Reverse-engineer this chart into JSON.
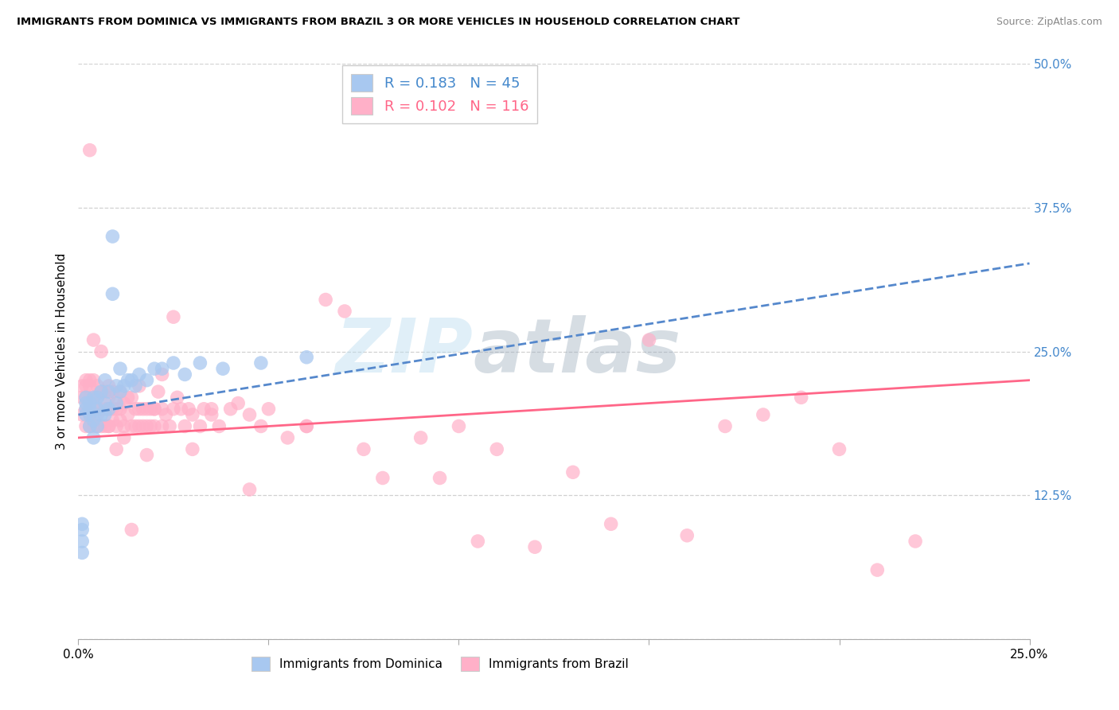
{
  "title": "IMMIGRANTS FROM DOMINICA VS IMMIGRANTS FROM BRAZIL 3 OR MORE VEHICLES IN HOUSEHOLD CORRELATION CHART",
  "source": "Source: ZipAtlas.com",
  "ylabel": "3 or more Vehicles in Household",
  "x_min": 0.0,
  "x_max": 0.25,
  "y_min": 0.0,
  "y_max": 0.5,
  "dominica_R": 0.183,
  "dominica_N": 45,
  "brazil_R": 0.102,
  "brazil_N": 116,
  "dominica_color": "#A8C8F0",
  "brazil_color": "#FFB0C8",
  "dominica_line_color": "#5588CC",
  "brazil_line_color": "#FF6688",
  "label_color": "#4488CC",
  "watermark_zip": "ZIP",
  "watermark_atlas": "atlas",
  "dom_line_x0": 0.0,
  "dom_line_y0": 0.195,
  "dom_line_x1": 0.095,
  "dom_line_y1": 0.245,
  "bra_line_x0": 0.0,
  "bra_line_y0": 0.175,
  "bra_line_x1": 0.25,
  "bra_line_y1": 0.225,
  "dominica_x": [
    0.001,
    0.001,
    0.001,
    0.002,
    0.002,
    0.002,
    0.002,
    0.003,
    0.003,
    0.003,
    0.003,
    0.004,
    0.004,
    0.005,
    0.005,
    0.005,
    0.006,
    0.006,
    0.007,
    0.007,
    0.007,
    0.008,
    0.008,
    0.009,
    0.009,
    0.01,
    0.01,
    0.011,
    0.011,
    0.012,
    0.013,
    0.014,
    0.015,
    0.016,
    0.018,
    0.02,
    0.022,
    0.025,
    0.028,
    0.032,
    0.038,
    0.048,
    0.06,
    0.001,
    0.004
  ],
  "dominica_y": [
    0.075,
    0.085,
    0.095,
    0.195,
    0.2,
    0.205,
    0.21,
    0.185,
    0.195,
    0.2,
    0.205,
    0.19,
    0.21,
    0.185,
    0.2,
    0.21,
    0.195,
    0.215,
    0.195,
    0.205,
    0.225,
    0.2,
    0.215,
    0.3,
    0.35,
    0.205,
    0.22,
    0.215,
    0.235,
    0.22,
    0.225,
    0.225,
    0.22,
    0.23,
    0.225,
    0.235,
    0.235,
    0.24,
    0.23,
    0.24,
    0.235,
    0.24,
    0.245,
    0.1,
    0.175
  ],
  "brazil_x": [
    0.001,
    0.001,
    0.001,
    0.002,
    0.002,
    0.002,
    0.002,
    0.002,
    0.003,
    0.003,
    0.003,
    0.003,
    0.003,
    0.004,
    0.004,
    0.004,
    0.004,
    0.005,
    0.005,
    0.005,
    0.005,
    0.006,
    0.006,
    0.006,
    0.007,
    0.007,
    0.007,
    0.008,
    0.008,
    0.008,
    0.008,
    0.009,
    0.009,
    0.009,
    0.01,
    0.01,
    0.01,
    0.011,
    0.011,
    0.011,
    0.012,
    0.012,
    0.013,
    0.013,
    0.014,
    0.014,
    0.015,
    0.015,
    0.016,
    0.016,
    0.017,
    0.017,
    0.018,
    0.018,
    0.019,
    0.019,
    0.02,
    0.02,
    0.021,
    0.022,
    0.022,
    0.023,
    0.024,
    0.025,
    0.026,
    0.027,
    0.028,
    0.029,
    0.03,
    0.032,
    0.033,
    0.035,
    0.037,
    0.04,
    0.042,
    0.045,
    0.048,
    0.05,
    0.055,
    0.06,
    0.065,
    0.07,
    0.075,
    0.08,
    0.09,
    0.095,
    0.1,
    0.105,
    0.11,
    0.12,
    0.13,
    0.14,
    0.15,
    0.16,
    0.17,
    0.18,
    0.19,
    0.2,
    0.21,
    0.22,
    0.003,
    0.004,
    0.006,
    0.008,
    0.01,
    0.012,
    0.014,
    0.016,
    0.018,
    0.02,
    0.022,
    0.025,
    0.03,
    0.035,
    0.045,
    0.06
  ],
  "brazil_y": [
    0.195,
    0.21,
    0.22,
    0.185,
    0.2,
    0.21,
    0.22,
    0.225,
    0.185,
    0.195,
    0.21,
    0.22,
    0.225,
    0.185,
    0.2,
    0.21,
    0.225,
    0.185,
    0.195,
    0.21,
    0.22,
    0.185,
    0.2,
    0.215,
    0.185,
    0.2,
    0.215,
    0.185,
    0.2,
    0.21,
    0.22,
    0.19,
    0.2,
    0.215,
    0.185,
    0.2,
    0.21,
    0.19,
    0.2,
    0.215,
    0.185,
    0.205,
    0.195,
    0.21,
    0.185,
    0.21,
    0.185,
    0.2,
    0.185,
    0.2,
    0.185,
    0.2,
    0.185,
    0.2,
    0.185,
    0.2,
    0.185,
    0.2,
    0.215,
    0.185,
    0.2,
    0.195,
    0.185,
    0.2,
    0.21,
    0.2,
    0.185,
    0.2,
    0.195,
    0.185,
    0.2,
    0.195,
    0.185,
    0.2,
    0.205,
    0.195,
    0.185,
    0.2,
    0.175,
    0.185,
    0.295,
    0.285,
    0.165,
    0.14,
    0.175,
    0.14,
    0.185,
    0.085,
    0.165,
    0.08,
    0.145,
    0.1,
    0.26,
    0.09,
    0.185,
    0.195,
    0.21,
    0.165,
    0.06,
    0.085,
    0.425,
    0.26,
    0.25,
    0.185,
    0.165,
    0.175,
    0.095,
    0.22,
    0.16,
    0.2,
    0.23,
    0.28,
    0.165,
    0.2,
    0.13,
    0.185
  ]
}
